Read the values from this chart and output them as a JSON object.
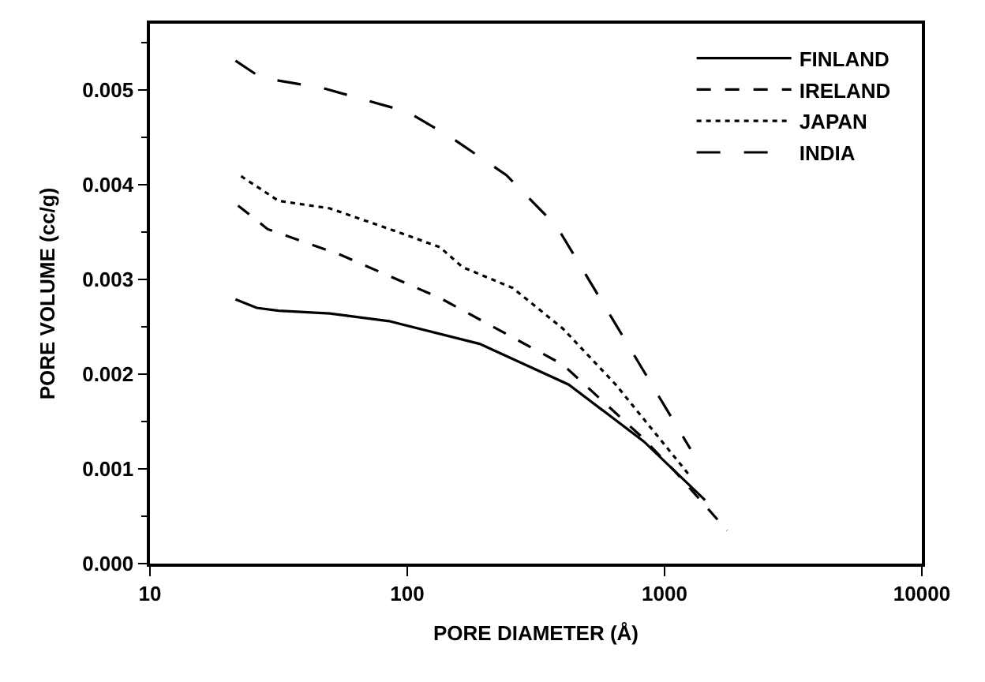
{
  "chart_data": {
    "type": "line",
    "xlabel": "PORE DIAMETER (Å)",
    "ylabel": "PORE VOLUME (cc/g)",
    "log": "x",
    "xlim": [
      10,
      10000
    ],
    "xticks": [
      10,
      100,
      1000,
      10000
    ],
    "ylim": [
      0,
      0.0057
    ],
    "yticks": [
      {
        "value": 0,
        "label": "0.000"
      },
      {
        "value": 0.001,
        "label": "0.001"
      },
      {
        "value": 0.002,
        "label": "0.002"
      },
      {
        "value": 0.003,
        "label": "0.003"
      },
      {
        "value": 0.004,
        "label": "0.004"
      },
      {
        "value": 0.005,
        "label": "0.005"
      }
    ],
    "grid": false,
    "legend": "top right",
    "marker": "none",
    "series": [
      {
        "name": "FINLAND",
        "color": "#000000",
        "line_style": "solid",
        "x": [
          21.5,
          26,
          31.6,
          50,
          85,
          191,
          424,
          830,
          1437
        ],
        "values": [
          0.00279,
          0.0027,
          0.00267,
          0.00264,
          0.00256,
          0.00232,
          0.00189,
          0.00129,
          0.00067
        ]
      },
      {
        "name": "IRELAND",
        "color": "#000000",
        "line_style": "dashed",
        "x": [
          22,
          28.7,
          55,
          135,
          403,
          806,
          1100,
          1750
        ],
        "values": [
          0.00378,
          0.00353,
          0.00326,
          0.0028,
          0.0021,
          0.00135,
          0.00097,
          0.00035
        ]
      },
      {
        "name": "JAPAN",
        "color": "#000000",
        "line_style": "dotted",
        "x": [
          22.6,
          31.6,
          50,
          90,
          134,
          164,
          257,
          403,
          646,
          1260
        ],
        "values": [
          0.00409,
          0.00383,
          0.00375,
          0.00351,
          0.00334,
          0.00313,
          0.00291,
          0.00248,
          0.00189,
          0.00092
        ]
      },
      {
        "name": "INDIA",
        "color": "#000000",
        "line_style": "longdash",
        "x": [
          21.5,
          27,
          47,
          100,
          148,
          243,
          381,
          661,
          1260
        ],
        "values": [
          0.00531,
          0.00513,
          0.00502,
          0.00477,
          0.0045,
          0.0041,
          0.00356,
          0.00248,
          0.00121
        ]
      }
    ]
  }
}
